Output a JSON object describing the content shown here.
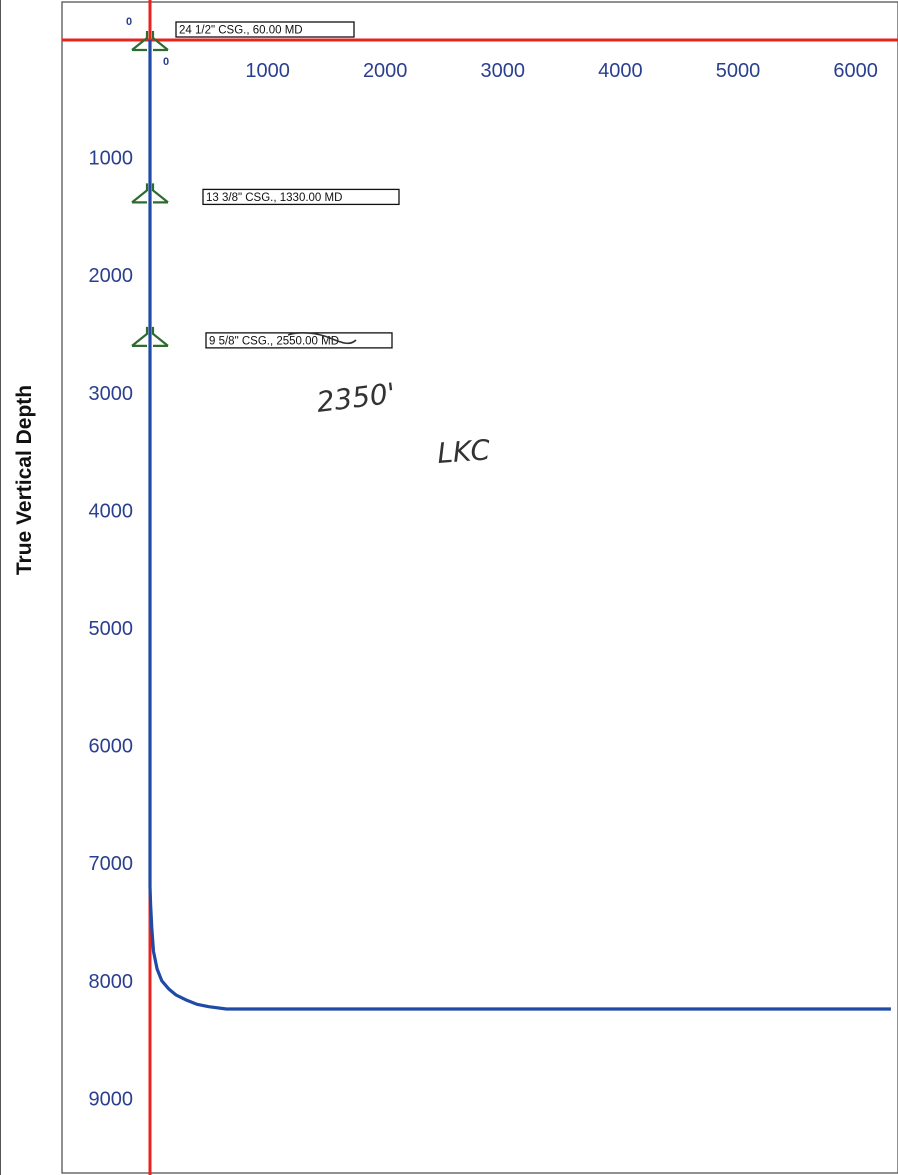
{
  "chart_data": {
    "type": "line",
    "ylabel": "True Vertical Depth",
    "xlabel": "",
    "x_ticks": [
      1000,
      2000,
      3000,
      4000,
      5000,
      6000
    ],
    "y_ticks": [
      1000,
      2000,
      3000,
      4000,
      5000,
      6000,
      7000,
      8000,
      9000
    ],
    "x_origin_label": "0",
    "y_origin_label": "0",
    "xlim": [
      0,
      6250
    ],
    "ylim": [
      0,
      9600
    ],
    "y_inverted": true,
    "grid": false,
    "reference_lines": {
      "x": 0,
      "y": 0,
      "color": "#e8231f"
    },
    "series": [
      {
        "color": "#1f4aa6",
        "x": [
          0,
          0,
          5,
          15,
          30,
          60,
          100,
          160,
          220,
          300,
          400,
          500,
          650,
          800,
          1000,
          2000,
          3000,
          4000,
          5000,
          6000,
          6300
        ],
        "y": [
          0,
          7200,
          7350,
          7550,
          7750,
          7900,
          8000,
          8070,
          8120,
          8160,
          8200,
          8220,
          8240,
          8240,
          8240,
          8240,
          8240,
          8240,
          8240,
          8240,
          8240
        ]
      }
    ],
    "annotations": [
      {
        "label": "24 1/2\" CSG., 60.00 MD",
        "y": 60,
        "color": "#2e6b2e"
      },
      {
        "label": "13 3/8\" CSG., 1330.00 MD",
        "y": 1330,
        "color": "#2e6b2e"
      },
      {
        "label": "9 5/8\" CSG., 2550.00 MD",
        "y": 2550,
        "color": "#2e6b2e"
      }
    ],
    "handwritten": [
      "2350'",
      "LKC"
    ]
  }
}
